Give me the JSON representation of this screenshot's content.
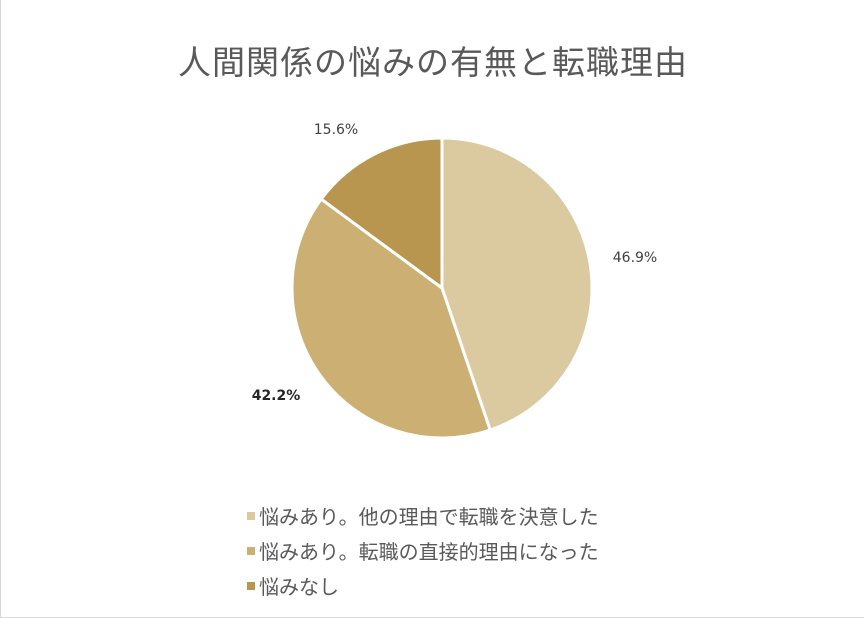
{
  "chart_data": {
    "type": "pie",
    "title": "人間関係の悩みの有無と転職理由",
    "slices": [
      {
        "label": "悩みあり。他の理由で転職を決意した",
        "value": 46.9,
        "display": "46.9%",
        "color": "#dbc9a0",
        "label_style": "normal"
      },
      {
        "label": "悩みあり。転職の直接的理由になった",
        "value": 42.2,
        "display": "42.2%",
        "color": "#ccaf72",
        "label_style": "bold"
      },
      {
        "label": "悩みなし",
        "value": 15.6,
        "display": "15.6%",
        "color": "#b89650",
        "label_style": "normal"
      }
    ],
    "start_angle_deg": 0,
    "direction": "clockwise",
    "separator_color": "#ffffff",
    "legend_position": "bottom"
  }
}
